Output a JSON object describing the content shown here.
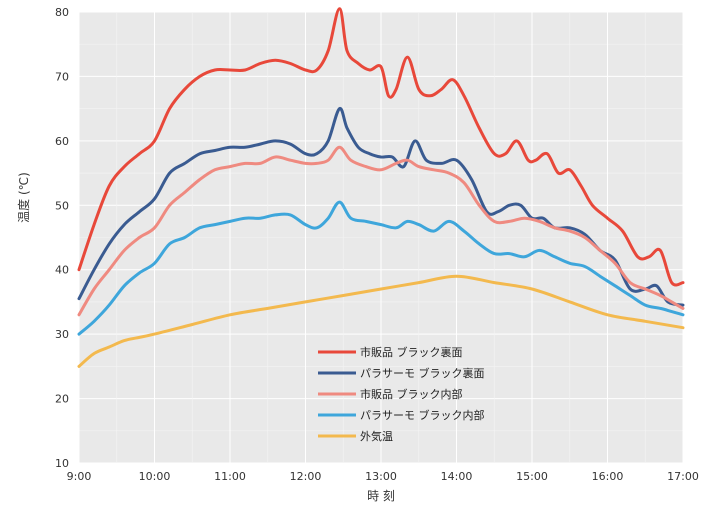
{
  "chart_data": {
    "type": "line",
    "xlabel": "時 刻",
    "ylabel": "温度 (℃)",
    "xlim": [
      9,
      17
    ],
    "ylim": [
      10,
      80
    ],
    "yticks": [
      10,
      20,
      30,
      40,
      50,
      60,
      70,
      80
    ],
    "xticks": [
      {
        "x": 9,
        "label": "9:00"
      },
      {
        "x": 10,
        "label": "10:00"
      },
      {
        "x": 11,
        "label": "11:00"
      },
      {
        "x": 12,
        "label": "12:00"
      },
      {
        "x": 13,
        "label": "13:00"
      },
      {
        "x": 14,
        "label": "14:00"
      },
      {
        "x": 15,
        "label": "15:00"
      },
      {
        "x": 16,
        "label": "16:00"
      },
      {
        "x": 17,
        "label": "17:00"
      }
    ],
    "grid": true,
    "legend_position": "bottom-center",
    "series": [
      {
        "name": "市販品 ブラック裏面",
        "color": "#e8483a",
        "x": [
          9.0,
          9.2,
          9.4,
          9.6,
          9.8,
          10.0,
          10.2,
          10.4,
          10.6,
          10.8,
          11.0,
          11.2,
          11.4,
          11.6,
          11.8,
          12.0,
          12.15,
          12.3,
          12.45,
          12.55,
          12.7,
          12.85,
          13.0,
          13.1,
          13.2,
          13.35,
          13.5,
          13.65,
          13.8,
          13.95,
          14.1,
          14.3,
          14.5,
          14.65,
          14.8,
          14.95,
          15.05,
          15.2,
          15.35,
          15.5,
          15.65,
          15.8,
          16.0,
          16.2,
          16.4,
          16.55,
          16.7,
          16.85,
          17.0
        ],
        "values": [
          40,
          47,
          53,
          56,
          58,
          60,
          65,
          68,
          70,
          71,
          71,
          71,
          72,
          72.5,
          72,
          71,
          71,
          74,
          80.5,
          74,
          72,
          71,
          71.5,
          67,
          68,
          73,
          68,
          67,
          68,
          69.5,
          67,
          62,
          58,
          58,
          60,
          57,
          57,
          58,
          55,
          55.5,
          53,
          50,
          48,
          46,
          42,
          42,
          43,
          38,
          38
        ]
      },
      {
        "name": "パラサーモ ブラック裏面",
        "color": "#3a5b91",
        "x": [
          9.0,
          9.2,
          9.4,
          9.6,
          9.8,
          10.0,
          10.2,
          10.4,
          10.6,
          10.8,
          11.0,
          11.2,
          11.4,
          11.6,
          11.8,
          12.0,
          12.15,
          12.3,
          12.45,
          12.55,
          12.7,
          12.85,
          13.0,
          13.15,
          13.3,
          13.45,
          13.6,
          13.8,
          14.0,
          14.2,
          14.4,
          14.55,
          14.7,
          14.85,
          15.0,
          15.15,
          15.3,
          15.5,
          15.7,
          15.9,
          16.1,
          16.3,
          16.5,
          16.65,
          16.8,
          17.0
        ],
        "values": [
          35.5,
          40,
          44,
          47,
          49,
          51,
          55,
          56.5,
          58,
          58.5,
          59,
          59,
          59.5,
          60,
          59.5,
          58,
          58,
          60,
          65,
          62,
          59,
          58,
          57.5,
          57.5,
          56,
          60,
          57,
          56.5,
          57,
          54,
          49,
          49,
          50,
          50,
          48,
          48,
          46.5,
          46.5,
          45.5,
          43,
          41.5,
          37,
          37,
          37.5,
          35,
          34.5
        ]
      },
      {
        "name": "市販品 ブラック内部",
        "color": "#ef8a80",
        "x": [
          9.0,
          9.2,
          9.4,
          9.6,
          9.8,
          10.0,
          10.2,
          10.4,
          10.6,
          10.8,
          11.0,
          11.2,
          11.4,
          11.6,
          11.8,
          12.0,
          12.15,
          12.3,
          12.45,
          12.6,
          12.8,
          13.0,
          13.2,
          13.35,
          13.5,
          13.7,
          13.9,
          14.1,
          14.3,
          14.5,
          14.7,
          14.9,
          15.1,
          15.3,
          15.5,
          15.7,
          15.9,
          16.1,
          16.3,
          16.5,
          16.7,
          16.85,
          17.0
        ],
        "values": [
          33,
          37,
          40,
          43,
          45,
          46.5,
          50,
          52,
          54,
          55.5,
          56,
          56.5,
          56.5,
          57.5,
          57,
          56.5,
          56.5,
          57,
          59,
          57,
          56,
          55.5,
          56.5,
          57,
          56,
          55.5,
          55,
          53.5,
          50,
          47.5,
          47.5,
          48,
          47.5,
          46.5,
          46,
          45,
          43,
          41,
          38,
          37,
          36,
          35,
          34
        ]
      },
      {
        "name": "パラサーモ ブラック内部",
        "color": "#3ea6db",
        "x": [
          9.0,
          9.2,
          9.4,
          9.6,
          9.8,
          10.0,
          10.2,
          10.4,
          10.6,
          10.8,
          11.0,
          11.2,
          11.4,
          11.6,
          11.8,
          12.0,
          12.15,
          12.3,
          12.45,
          12.6,
          12.8,
          13.0,
          13.2,
          13.35,
          13.5,
          13.7,
          13.9,
          14.1,
          14.3,
          14.5,
          14.7,
          14.9,
          15.1,
          15.3,
          15.5,
          15.7,
          15.9,
          16.1,
          16.3,
          16.5,
          16.7,
          16.85,
          17.0
        ],
        "values": [
          30,
          32,
          34.5,
          37.5,
          39.5,
          41,
          44,
          45,
          46.5,
          47,
          47.5,
          48,
          48,
          48.5,
          48.5,
          47,
          46.5,
          48,
          50.5,
          48,
          47.5,
          47,
          46.5,
          47.5,
          47,
          46,
          47.5,
          46,
          44,
          42.5,
          42.5,
          42,
          43,
          42,
          41,
          40.5,
          39,
          37.5,
          36,
          34.5,
          34,
          33.5,
          33
        ]
      },
      {
        "name": "外気温",
        "color": "#f3b94e",
        "x": [
          9.0,
          9.2,
          9.4,
          9.6,
          9.8,
          10.0,
          10.5,
          11.0,
          11.5,
          12.0,
          12.5,
          13.0,
          13.5,
          14.0,
          14.5,
          15.0,
          15.5,
          16.0,
          16.5,
          17.0
        ],
        "values": [
          25,
          27,
          28,
          29,
          29.5,
          30,
          31.5,
          33,
          34,
          35,
          36,
          37,
          38,
          39,
          38,
          37,
          35,
          33,
          32,
          31
        ]
      }
    ]
  }
}
